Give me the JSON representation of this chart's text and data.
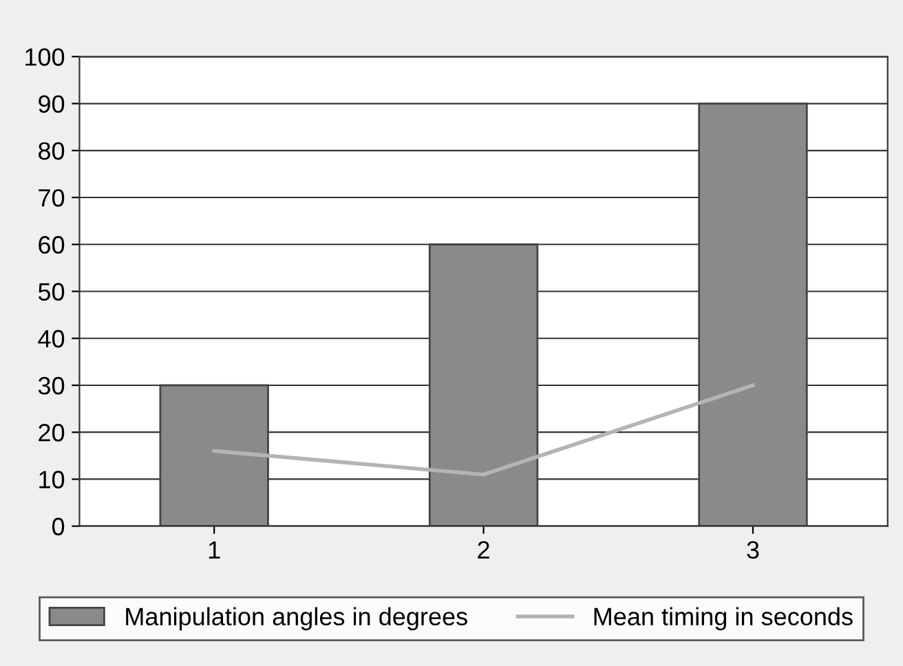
{
  "chart_data": {
    "type": "bar",
    "categories": [
      "1",
      "2",
      "3"
    ],
    "series": [
      {
        "name": "Manipulation angles in degrees",
        "color": "#8a8a8a",
        "values": [
          30,
          60,
          90
        ]
      },
      {
        "name": "Mean timing in seconds",
        "type": "line",
        "color": "#b4b4b4",
        "values": [
          16,
          11,
          30
        ]
      }
    ],
    "ylim": [
      0,
      100
    ],
    "yticks": [
      0,
      10,
      20,
      30,
      40,
      50,
      60,
      70,
      80,
      90,
      100
    ],
    "grid": "y",
    "legend": "bottom",
    "marker": "none"
  }
}
